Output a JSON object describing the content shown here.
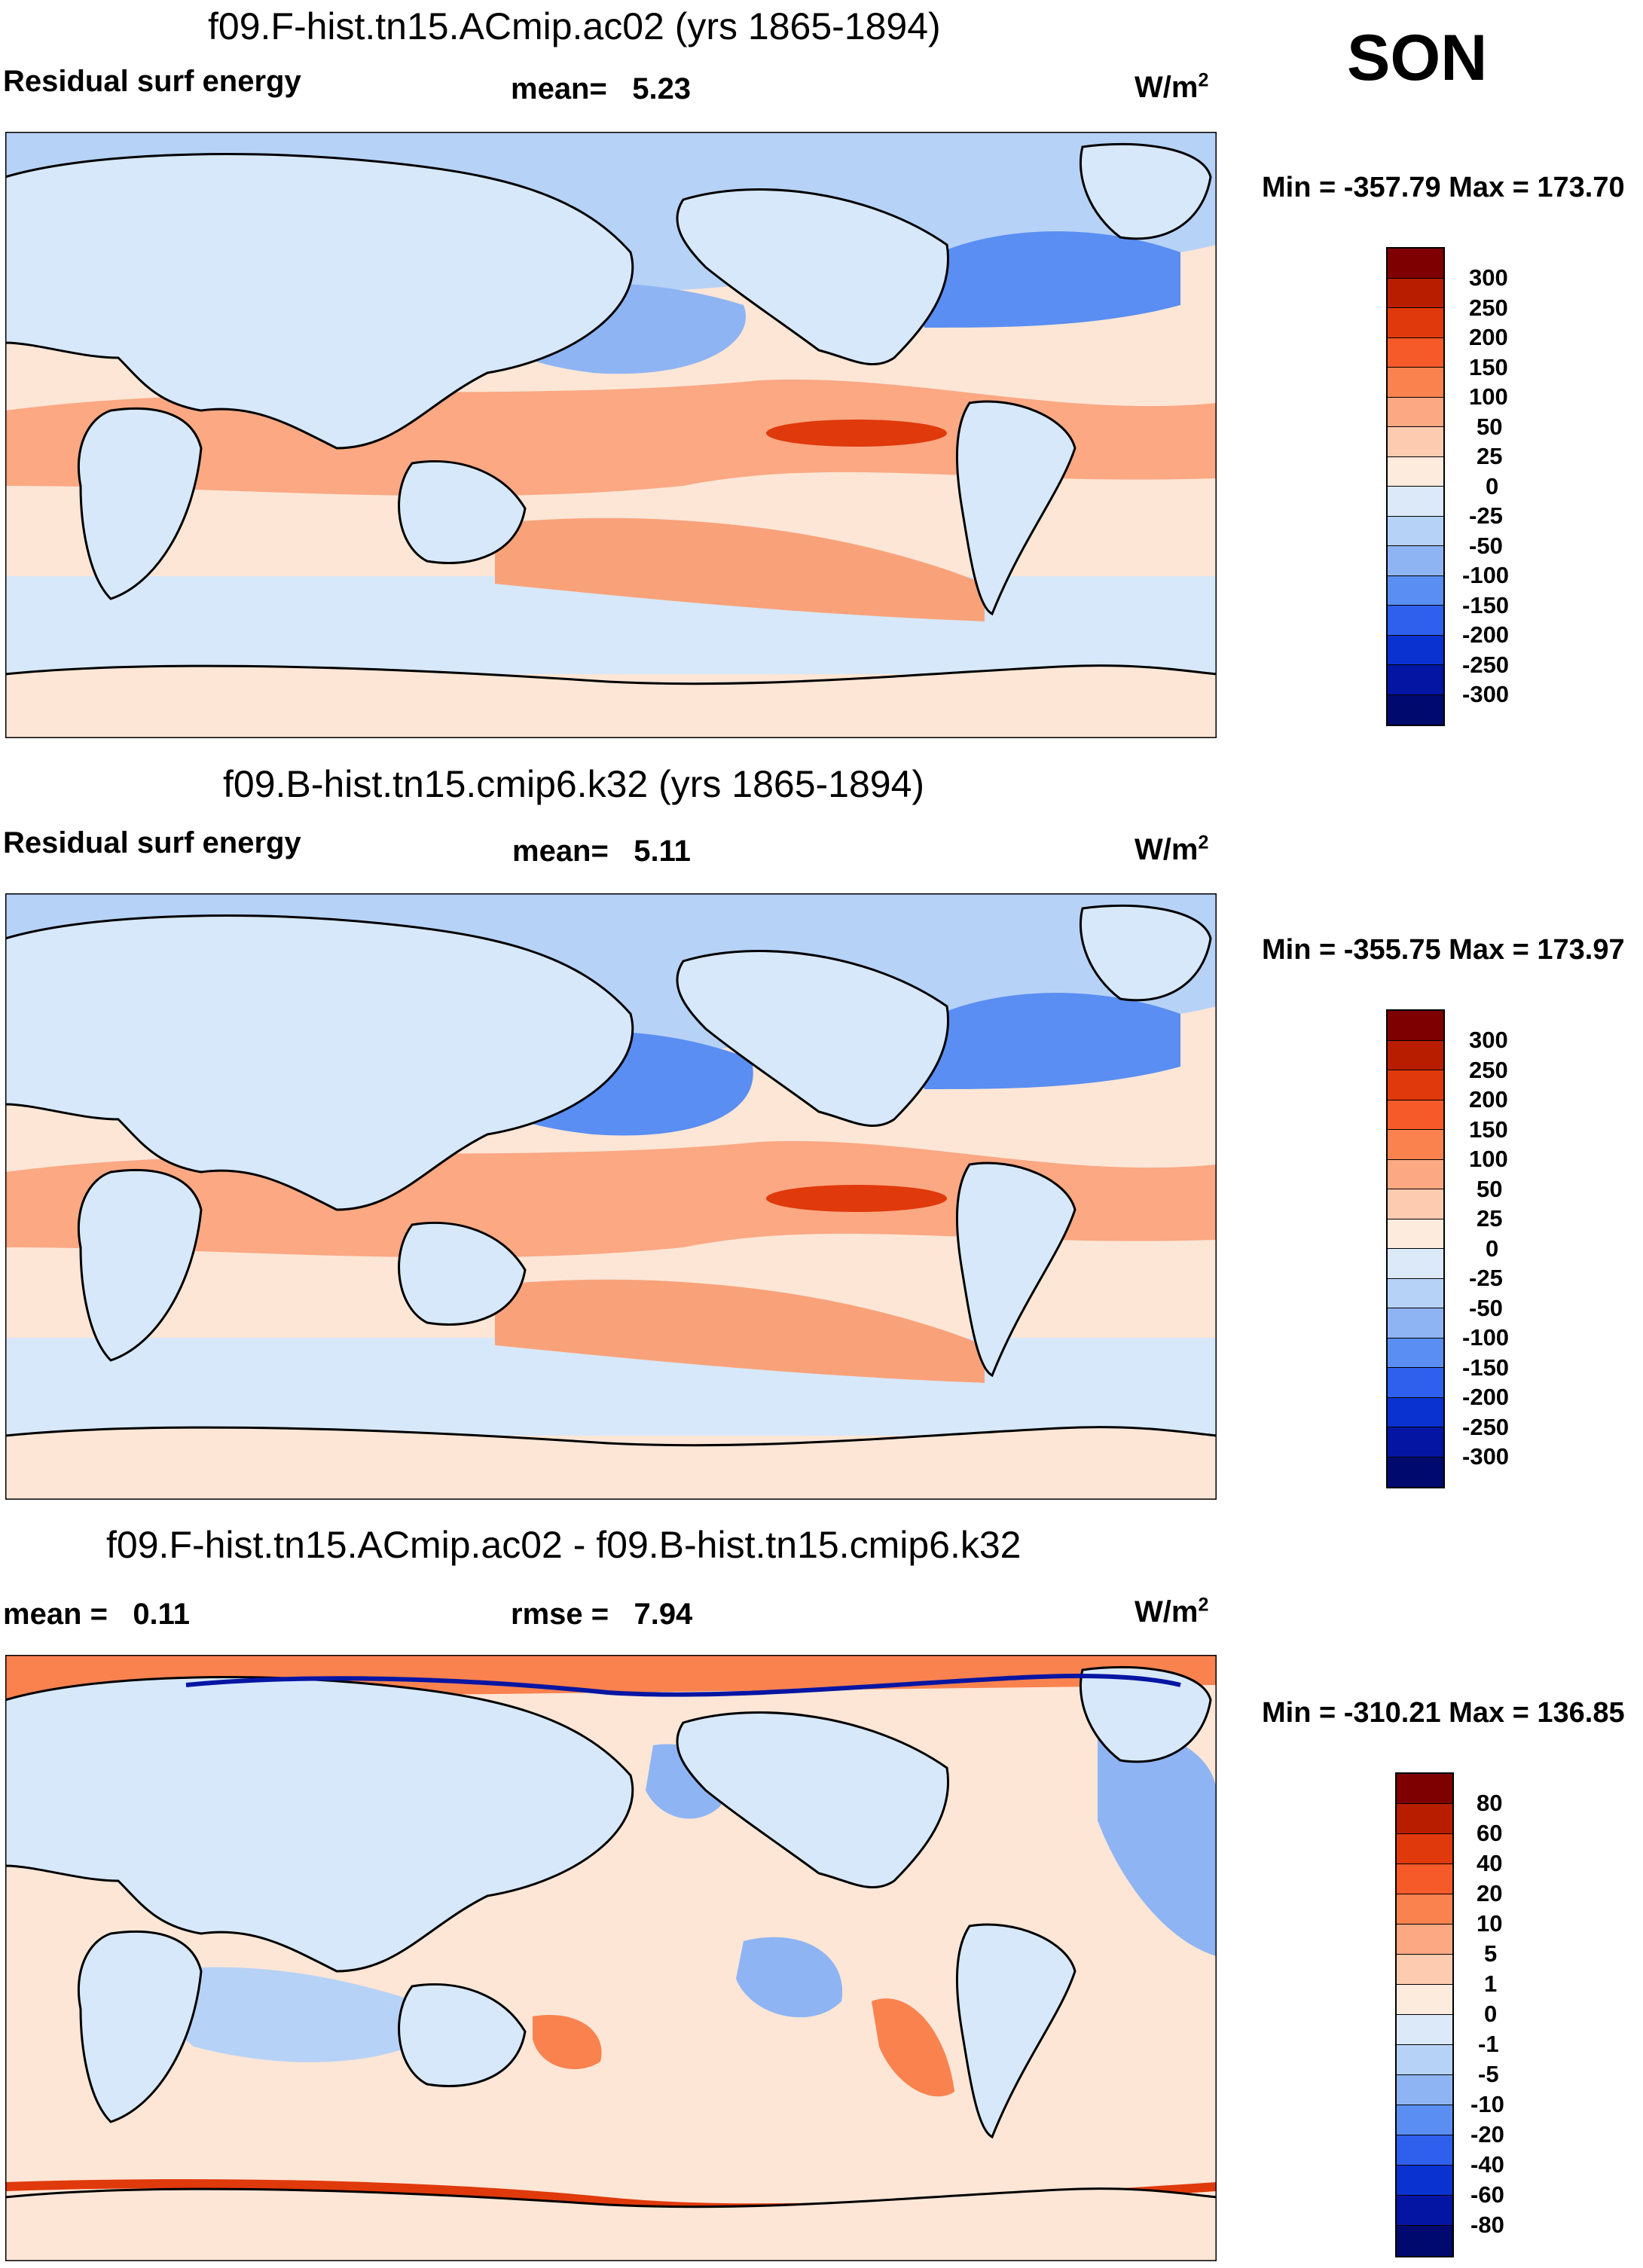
{
  "season": "SON",
  "panels": [
    {
      "title": "f09.F-hist.tn15.ACmip.ac02 (yrs 1865-1894)",
      "left_label": "Residual surf energy",
      "mid_label": "mean=",
      "mid_value": "5.23",
      "units": "W/m",
      "units_sup": "2",
      "minmax": "Min = -357.79 Max = 173.70",
      "colorbar_ticks": [
        "300",
        "250",
        "200",
        "150",
        "100",
        "50",
        "25",
        "0",
        "-25",
        "-50",
        "-100",
        "-150",
        "-200",
        "-250",
        "-300"
      ]
    },
    {
      "title": "f09.B-hist.tn15.cmip6.k32 (yrs 1865-1894)",
      "left_label": "Residual surf energy",
      "mid_label": "mean=",
      "mid_value": "5.11",
      "units": "W/m",
      "units_sup": "2",
      "minmax": "Min = -355.75 Max = 173.97",
      "colorbar_ticks": [
        "300",
        "250",
        "200",
        "150",
        "100",
        "50",
        "25",
        "0",
        "-25",
        "-50",
        "-100",
        "-150",
        "-200",
        "-250",
        "-300"
      ]
    },
    {
      "title": "f09.F-hist.tn15.ACmip.ac02 - f09.B-hist.tn15.cmip6.k32",
      "left_label": "mean =",
      "left_value": "0.11",
      "mid_label": "rmse =",
      "mid_value": "7.94",
      "units": "W/m",
      "units_sup": "2",
      "minmax": "Min = -310.21 Max = 136.85",
      "colorbar_ticks": [
        "80",
        "60",
        "40",
        "20",
        "10",
        "5",
        "1",
        "0",
        "-1",
        "-5",
        "-10",
        "-20",
        "-40",
        "-60",
        "-80"
      ]
    }
  ],
  "colors": {
    "colorbar": [
      "#7f0000",
      "#b81d00",
      "#e0390b",
      "#f65a28",
      "#f9824f",
      "#fba883",
      "#fdcbb0",
      "#fdebdd",
      "#dbe9f9",
      "#b7d2f7",
      "#8fb4f4",
      "#5a8ef2",
      "#2f60ed",
      "#0a32d0",
      "#0515a3",
      "#000a6e"
    ],
    "ocean_neutral": "#fde6d6",
    "land": "#d7e8fa"
  }
}
